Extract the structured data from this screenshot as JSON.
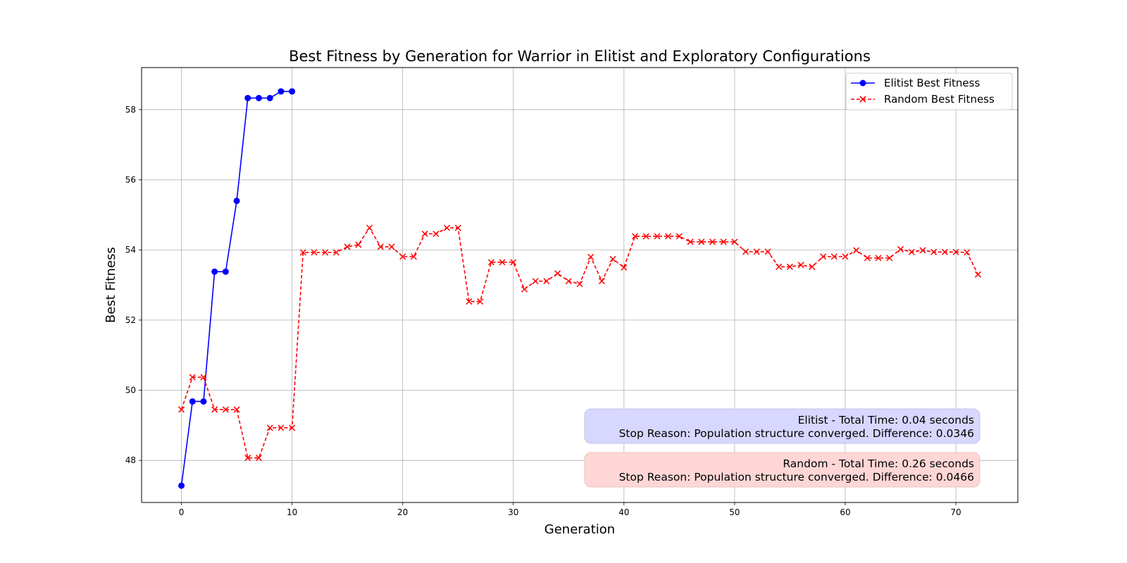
{
  "chart_data": {
    "type": "line",
    "title": "Best Fitness by Generation for Warrior in Elitist and Exploratory Configurations",
    "xlabel": "Generation",
    "ylabel": "Best Fitness",
    "xlim": [
      -3.6,
      75.6
    ],
    "ylim": [
      46.8,
      59.2
    ],
    "xticks": [
      0,
      10,
      20,
      30,
      40,
      50,
      60,
      70
    ],
    "yticks": [
      48,
      50,
      52,
      54,
      56,
      58
    ],
    "grid": true,
    "legend_position": "top-right",
    "series": [
      {
        "name": "Elitist Best Fitness",
        "color": "#0000ff",
        "line_style": "solid",
        "marker": "circle",
        "x": [
          0,
          1,
          2,
          3,
          4,
          5,
          6,
          7,
          8,
          9,
          10
        ],
        "values": [
          47.28,
          49.68,
          49.68,
          53.38,
          53.38,
          55.4,
          58.33,
          58.33,
          58.33,
          58.52,
          58.52
        ]
      },
      {
        "name": "Random Best Fitness",
        "color": "#ff0000",
        "line_style": "dashed",
        "marker": "x",
        "x": [
          0,
          1,
          2,
          3,
          4,
          5,
          6,
          7,
          8,
          9,
          10,
          11,
          12,
          13,
          14,
          15,
          16,
          17,
          18,
          19,
          20,
          21,
          22,
          23,
          24,
          25,
          26,
          27,
          28,
          29,
          30,
          31,
          32,
          33,
          34,
          35,
          36,
          37,
          38,
          39,
          40,
          41,
          42,
          43,
          44,
          45,
          46,
          47,
          48,
          49,
          50,
          51,
          52,
          53,
          54,
          55,
          56,
          57,
          58,
          59,
          60,
          61,
          62,
          63,
          64,
          65,
          66,
          67,
          68,
          69,
          70,
          71,
          72
        ],
        "values": [
          49.45,
          50.37,
          50.37,
          49.45,
          49.45,
          49.45,
          48.07,
          48.07,
          48.93,
          48.93,
          48.93,
          53.93,
          53.93,
          53.93,
          53.93,
          54.09,
          54.15,
          54.63,
          54.09,
          54.09,
          53.81,
          53.81,
          54.46,
          54.46,
          54.63,
          54.63,
          52.53,
          52.53,
          53.65,
          53.65,
          53.65,
          52.88,
          53.11,
          53.11,
          53.33,
          53.11,
          53.03,
          53.8,
          53.11,
          53.74,
          53.5,
          54.39,
          54.39,
          54.39,
          54.39,
          54.39,
          54.23,
          54.23,
          54.23,
          54.23,
          54.23,
          53.95,
          53.95,
          53.95,
          53.52,
          53.52,
          53.57,
          53.52,
          53.81,
          53.81,
          53.81,
          53.99,
          53.77,
          53.77,
          53.77,
          54.02,
          53.94,
          53.99,
          53.94,
          53.94,
          53.94,
          53.93,
          53.3
        ]
      }
    ],
    "annotations": [
      {
        "name": "elitist-summary",
        "lines": [
          "Elitist - Total Time: 0.04 seconds",
          "Stop Reason: Population structure converged. Difference: 0.0346"
        ],
        "box_color": "#d7d7ff"
      },
      {
        "name": "random-summary",
        "lines": [
          "Random - Total Time: 0.26 seconds",
          "Stop Reason: Population structure converged. Difference: 0.0466"
        ],
        "box_color": "#ffd6d6"
      }
    ]
  }
}
